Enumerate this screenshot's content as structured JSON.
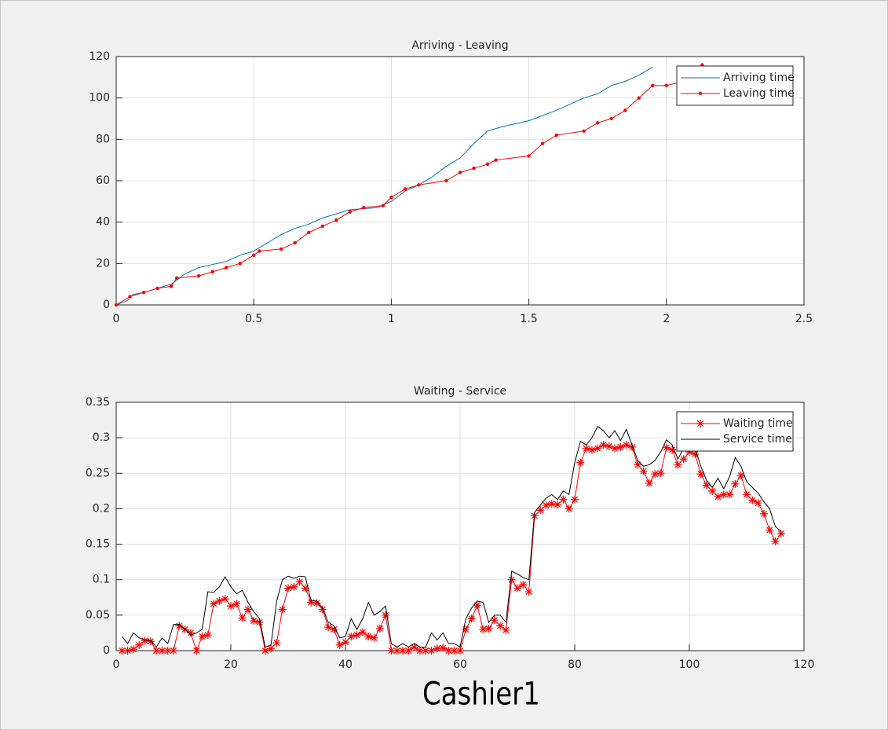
{
  "chart_data": [
    {
      "type": "line",
      "title": "Arriving - Leaving",
      "xlim": [
        0,
        2.5
      ],
      "xticks": [
        0,
        0.5,
        1,
        1.5,
        2,
        2.5
      ],
      "ylim": [
        0,
        120
      ],
      "yticks": [
        0,
        20,
        40,
        60,
        80,
        100,
        120
      ],
      "grid": true,
      "legend": "northeast",
      "series": [
        {
          "name": "Arriving time",
          "color": "#0072bd",
          "marker": "none",
          "x": [
            0,
            0.04,
            0.06,
            0.1,
            0.15,
            0.2,
            0.25,
            0.3,
            0.4,
            0.45,
            0.5,
            0.55,
            0.6,
            0.65,
            0.7,
            0.75,
            0.8,
            0.85,
            0.95,
            1.0,
            1.05,
            1.1,
            1.15,
            1.2,
            1.25,
            1.3,
            1.35,
            1.4,
            1.5,
            1.6,
            1.65,
            1.7,
            1.75,
            1.8,
            1.85,
            1.9,
            1.95
          ],
          "values": [
            0,
            2,
            5,
            6,
            8,
            10,
            15,
            18,
            21,
            24,
            26,
            30,
            34,
            37,
            39,
            42,
            44,
            46,
            47,
            50,
            55,
            58,
            62,
            67,
            71,
            78,
            84,
            86,
            89,
            94,
            97,
            100,
            102,
            106,
            108,
            111,
            115
          ]
        },
        {
          "name": "Leaving time",
          "color": "#ff0000",
          "marker": "dot",
          "x": [
            0,
            0.05,
            0.1,
            0.15,
            0.2,
            0.22,
            0.3,
            0.35,
            0.4,
            0.45,
            0.5,
            0.52,
            0.6,
            0.65,
            0.7,
            0.75,
            0.8,
            0.85,
            0.9,
            0.97,
            1.0,
            1.05,
            1.1,
            1.2,
            1.25,
            1.3,
            1.35,
            1.38,
            1.5,
            1.55,
            1.6,
            1.7,
            1.75,
            1.8,
            1.85,
            1.9,
            1.95,
            2.0,
            2.12,
            2.13
          ],
          "values": [
            0,
            4,
            6,
            8,
            9,
            13,
            14,
            16,
            18,
            20,
            24,
            26,
            27,
            30,
            35,
            38,
            41,
            45,
            47,
            48,
            52,
            56,
            58,
            60,
            64,
            66,
            68,
            70,
            72,
            78,
            82,
            84,
            88,
            90,
            94,
            100,
            106,
            106,
            110,
            116
          ]
        }
      ]
    },
    {
      "type": "line",
      "title": "Waiting - Service",
      "xlim": [
        0,
        120
      ],
      "xticks": [
        0,
        20,
        40,
        60,
        80,
        100,
        120
      ],
      "ylim": [
        0,
        0.35
      ],
      "yticks": [
        0,
        0.05,
        0.1,
        0.15,
        0.2,
        0.25,
        0.3,
        0.35
      ],
      "grid": true,
      "legend": "northeast",
      "x": [
        1,
        2,
        3,
        4,
        5,
        6,
        7,
        8,
        9,
        10,
        11,
        12,
        13,
        14,
        15,
        16,
        17,
        18,
        19,
        20,
        21,
        22,
        23,
        24,
        25,
        26,
        27,
        28,
        29,
        30,
        31,
        32,
        33,
        34,
        35,
        36,
        37,
        38,
        39,
        40,
        41,
        42,
        43,
        44,
        45,
        46,
        47,
        48,
        49,
        50,
        51,
        52,
        53,
        54,
        55,
        56,
        57,
        58,
        59,
        60,
        61,
        62,
        63,
        64,
        65,
        66,
        67,
        68,
        69,
        70,
        71,
        72,
        73,
        74,
        75,
        76,
        77,
        78,
        79,
        80,
        81,
        82,
        83,
        84,
        85,
        86,
        87,
        88,
        89,
        90,
        91,
        92,
        93,
        94,
        95,
        96,
        97,
        98,
        99,
        100,
        101,
        102,
        103,
        104,
        105,
        106,
        107,
        108,
        109,
        110,
        111,
        112,
        113,
        114,
        115,
        116
      ],
      "series": [
        {
          "name": "Waiting time",
          "color": "#ff0000",
          "marker": "star",
          "values": [
            0,
            0,
            0.002,
            0.008,
            0.014,
            0.013,
            0,
            0,
            0,
            0,
            0.035,
            0.03,
            0.025,
            0,
            0.02,
            0.022,
            0.066,
            0.07,
            0.073,
            0.063,
            0.066,
            0.046,
            0.058,
            0.042,
            0.04,
            0,
            0.003,
            0.011,
            0.058,
            0.088,
            0.09,
            0.097,
            0.088,
            0.068,
            0.067,
            0.058,
            0.033,
            0.03,
            0.008,
            0.012,
            0.02,
            0.022,
            0.026,
            0.02,
            0.018,
            0.031,
            0.05,
            0,
            0,
            0,
            0,
            0.005,
            0,
            0,
            0,
            0.003,
            0.004,
            0,
            0,
            0,
            0.03,
            0.045,
            0.064,
            0.03,
            0.031,
            0.043,
            0.035,
            0.029,
            0.1,
            0.088,
            0.093,
            0.083,
            0.19,
            0.198,
            0.205,
            0.207,
            0.206,
            0.213,
            0.2,
            0.213,
            0.265,
            0.285,
            0.283,
            0.285,
            0.29,
            0.288,
            0.285,
            0.287,
            0.29,
            0.287,
            0.262,
            0.253,
            0.236,
            0.249,
            0.25,
            0.286,
            0.283,
            0.262,
            0.27,
            0.28,
            0.277,
            0.249,
            0.233,
            0.225,
            0.217,
            0.22,
            0.22,
            0.235,
            0.247,
            0.22,
            0.212,
            0.208,
            0.193,
            0.17,
            0.154,
            0.165
          ]
        },
        {
          "name": "Service time",
          "color": "#000000",
          "marker": "none",
          "values": [
            0.02,
            0.01,
            0.025,
            0.018,
            0.015,
            0.015,
            0.005,
            0.018,
            0.01,
            0.037,
            0.037,
            0.03,
            0.022,
            0.025,
            0.03,
            0.083,
            0.082,
            0.09,
            0.104,
            0.09,
            0.08,
            0.085,
            0.068,
            0.055,
            0.045,
            0.005,
            0.008,
            0.07,
            0.1,
            0.105,
            0.102,
            0.105,
            0.104,
            0.07,
            0.07,
            0.06,
            0.04,
            0.035,
            0.018,
            0.02,
            0.045,
            0.03,
            0.045,
            0.068,
            0.05,
            0.055,
            0.063,
            0.01,
            0.005,
            0.01,
            0.005,
            0.01,
            0.005,
            0.005,
            0.025,
            0.015,
            0.025,
            0.01,
            0.01,
            0.005,
            0.045,
            0.06,
            0.07,
            0.068,
            0.04,
            0.05,
            0.05,
            0.04,
            0.112,
            0.108,
            0.103,
            0.1,
            0.195,
            0.205,
            0.215,
            0.22,
            0.213,
            0.225,
            0.22,
            0.265,
            0.295,
            0.29,
            0.3,
            0.316,
            0.31,
            0.3,
            0.31,
            0.296,
            0.312,
            0.29,
            0.268,
            0.26,
            0.262,
            0.268,
            0.28,
            0.297,
            0.29,
            0.27,
            0.285,
            0.3,
            0.285,
            0.26,
            0.24,
            0.23,
            0.243,
            0.228,
            0.245,
            0.272,
            0.26,
            0.238,
            0.23,
            0.222,
            0.21,
            0.2,
            0.175,
            0.168
          ]
        }
      ]
    }
  ],
  "caption": "Cashier1"
}
